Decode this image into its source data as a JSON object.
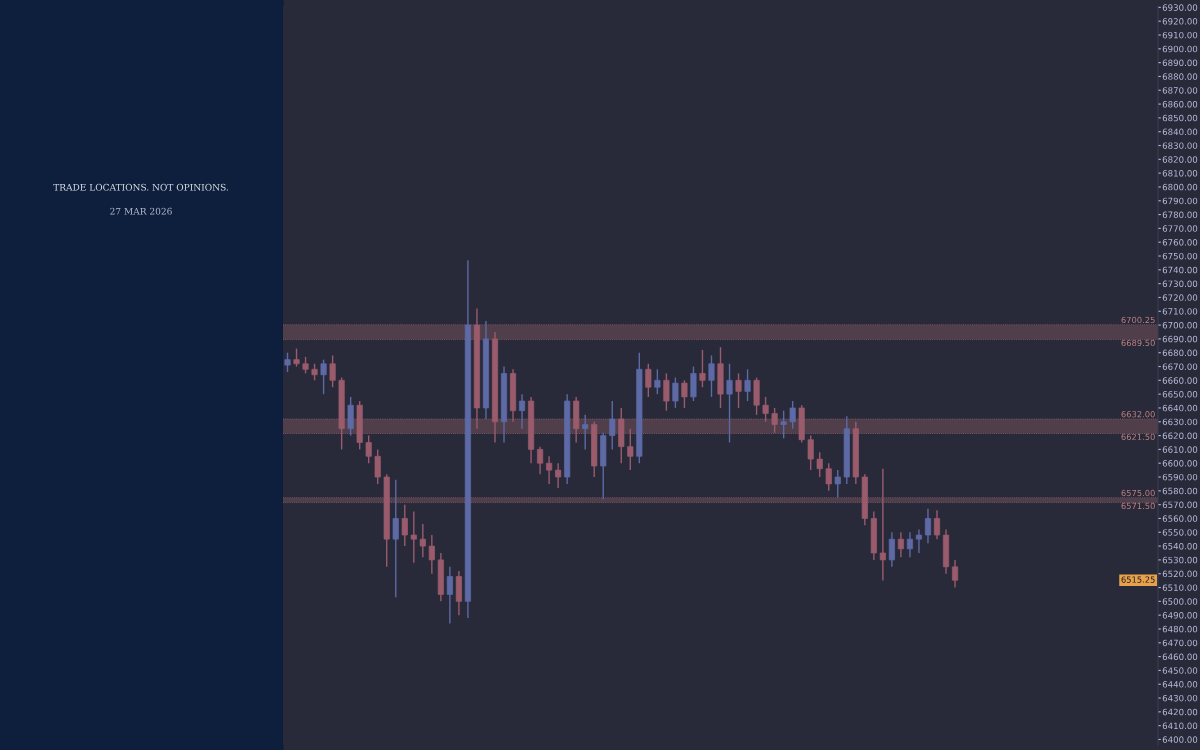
{
  "chart_data": {
    "type": "candlestick",
    "subtitle": "TRADE LOCATIONS. NOT OPINIONS.",
    "annotations": [
      "27 MAR 2026",
      {
        "text": "6515.25",
        "y": 6515.25
      }
    ],
    "categories": [
      null,
      null,
      null,
      null,
      null,
      null,
      null,
      null,
      null,
      null,
      null,
      null,
      null,
      null,
      null,
      null,
      null,
      null,
      null,
      null,
      null,
      null,
      null,
      null,
      null,
      null,
      null,
      null,
      null,
      null,
      null,
      null,
      null,
      null,
      null,
      null,
      null,
      null,
      null,
      null,
      null,
      null,
      null,
      null,
      null,
      null,
      null,
      null,
      null,
      null,
      null,
      null,
      null,
      null,
      null,
      null,
      null,
      null,
      null,
      null,
      null,
      null,
      null,
      null,
      null,
      null,
      null,
      null,
      null,
      null,
      null,
      null,
      null,
      null,
      null,
      null,
      null,
      null,
      null,
      null,
      null,
      null,
      null,
      null,
      null,
      null,
      null,
      null,
      null,
      null,
      null,
      null,
      null,
      null,
      null,
      null,
      null
    ],
    "ohlc": [
      [
        6671,
        6680,
        6666,
        6675
      ],
      [
        6675,
        6683,
        6670,
        6672
      ],
      [
        6672,
        6677,
        6665,
        6668
      ],
      [
        6668,
        6672,
        6660,
        6664
      ],
      [
        6664,
        6675,
        6650,
        6672
      ],
      [
        6672,
        6678,
        6655,
        6660
      ],
      [
        6660,
        6662,
        6610,
        6625
      ],
      [
        6625,
        6648,
        6620,
        6642
      ],
      [
        6642,
        6645,
        6610,
        6615
      ],
      [
        6615,
        6620,
        6600,
        6605
      ],
      [
        6605,
        6610,
        6585,
        6590
      ],
      [
        6590,
        6592,
        6525,
        6545
      ],
      [
        6545,
        6588,
        6503,
        6560
      ],
      [
        6560,
        6570,
        6540,
        6548
      ],
      [
        6548,
        6565,
        6528,
        6545
      ],
      [
        6545,
        6556,
        6532,
        6540
      ],
      [
        6540,
        6548,
        6520,
        6530
      ],
      [
        6530,
        6535,
        6500,
        6505
      ],
      [
        6505,
        6525,
        6484,
        6518
      ],
      [
        6518,
        6522,
        6490,
        6500
      ],
      [
        6500,
        6747,
        6488,
        6700
      ],
      [
        6700,
        6712,
        6625,
        6640
      ],
      [
        6640,
        6703,
        6632,
        6690
      ],
      [
        6690,
        6695,
        6615,
        6630
      ],
      [
        6630,
        6670,
        6615,
        6665
      ],
      [
        6665,
        6668,
        6630,
        6638
      ],
      [
        6638,
        6650,
        6625,
        6645
      ],
      [
        6645,
        6648,
        6600,
        6610
      ],
      [
        6610,
        6612,
        6592,
        6600
      ],
      [
        6600,
        6605,
        6585,
        6595
      ],
      [
        6595,
        6600,
        6582,
        6590
      ],
      [
        6590,
        6650,
        6585,
        6645
      ],
      [
        6645,
        6648,
        6615,
        6625
      ],
      [
        6625,
        6635,
        6610,
        6628
      ],
      [
        6628,
        6630,
        6590,
        6598
      ],
      [
        6598,
        6622,
        6574,
        6620
      ],
      [
        6620,
        6645,
        6610,
        6632
      ],
      [
        6632,
        6640,
        6600,
        6612
      ],
      [
        6612,
        6625,
        6595,
        6605
      ],
      [
        6605,
        6680,
        6600,
        6668
      ],
      [
        6668,
        6672,
        6648,
        6655
      ],
      [
        6655,
        6668,
        6650,
        6660
      ],
      [
        6660,
        6665,
        6638,
        6645
      ],
      [
        6645,
        6662,
        6640,
        6658
      ],
      [
        6658,
        6660,
        6640,
        6648
      ],
      [
        6648,
        6670,
        6645,
        6665
      ],
      [
        6665,
        6682,
        6655,
        6660
      ],
      [
        6660,
        6678,
        6648,
        6672
      ],
      [
        6672,
        6684,
        6640,
        6650
      ],
      [
        6650,
        6672,
        6615,
        6660
      ],
      [
        6660,
        6665,
        6640,
        6652
      ],
      [
        6652,
        6668,
        6645,
        6660
      ],
      [
        6660,
        6662,
        6635,
        6642
      ],
      [
        6642,
        6648,
        6630,
        6636
      ],
      [
        6636,
        6640,
        6622,
        6628
      ],
      [
        6628,
        6638,
        6618,
        6630
      ],
      [
        6630,
        6645,
        6625,
        6640
      ],
      [
        6640,
        6642,
        6615,
        6617
      ],
      [
        6617,
        6620,
        6595,
        6603
      ],
      [
        6603,
        6608,
        6590,
        6596
      ],
      [
        6596,
        6600,
        6580,
        6585
      ],
      [
        6585,
        6595,
        6575,
        6590
      ],
      [
        6590,
        6634,
        6585,
        6625
      ],
      [
        6625,
        6630,
        6585,
        6590
      ],
      [
        6590,
        6592,
        6555,
        6560
      ],
      [
        6560,
        6565,
        6530,
        6535
      ],
      [
        6535,
        6596,
        6515,
        6530
      ],
      [
        6530,
        6550,
        6525,
        6545
      ],
      [
        6545,
        6550,
        6532,
        6538
      ],
      [
        6538,
        6550,
        6532,
        6545
      ],
      [
        6545,
        6552,
        6535,
        6548
      ],
      [
        6548,
        6567,
        6542,
        6560
      ],
      [
        6560,
        6566,
        6545,
        6548
      ],
      [
        6548,
        6552,
        6520,
        6525
      ],
      [
        6525,
        6530,
        6510,
        6515.25
      ],
      null,
      null,
      null,
      null,
      null,
      null,
      null,
      null,
      null,
      null,
      null,
      null,
      null,
      null,
      null,
      null,
      null,
      null,
      null,
      null,
      null,
      null
    ],
    "colors": [
      "#5d6aa6",
      "#9a5c6c",
      "#9a5c6c",
      "#9a5c6c",
      "#5d6aa6",
      "#9a5c6c",
      "#9a5c6c",
      "#5d6aa6",
      "#9a5c6c",
      "#9a5c6c",
      "#9a5c6c",
      "#9a5c6c",
      "#5d6aa6",
      "#9a5c6c",
      "#9a5c6c",
      "#9a5c6c",
      "#9a5c6c",
      "#9a5c6c",
      "#5d6aa6",
      "#9a5c6c",
      "#5d6aa6",
      "#9a5c6c",
      "#5d6aa6",
      "#9a5c6c",
      "#5d6aa6",
      "#9a5c6c",
      "#5d6aa6",
      "#9a5c6c",
      "#9a5c6c",
      "#9a5c6c",
      "#9a5c6c",
      "#5d6aa6",
      "#9a5c6c",
      "#5d6aa6",
      "#9a5c6c",
      "#5d6aa6",
      "#5d6aa6",
      "#9a5c6c",
      "#9a5c6c",
      "#5d6aa6",
      "#9a5c6c",
      "#5d6aa6",
      "#9a5c6c",
      "#5d6aa6",
      "#9a5c6c",
      "#5d6aa6",
      "#9a5c6c",
      "#5d6aa6",
      "#9a5c6c",
      "#5d6aa6",
      "#9a5c6c",
      "#5d6aa6",
      "#9a5c6c",
      "#9a5c6c",
      "#9a5c6c",
      "#5d6aa6",
      "#5d6aa6",
      "#9a5c6c",
      "#9a5c6c",
      "#9a5c6c",
      "#9a5c6c",
      "#5d6aa6",
      "#5d6aa6",
      "#9a5c6c",
      "#9a5c6c",
      "#9a5c6c",
      "#9a5c6c",
      "#5d6aa6",
      "#9a5c6c",
      "#5d6aa6",
      "#5d6aa6",
      "#5d6aa6",
      "#9a5c6c",
      "#9a5c6c",
      "#9a5c6c",
      null,
      null,
      null,
      null,
      null,
      null,
      null,
      null,
      null,
      null,
      null,
      null,
      null,
      null,
      null,
      null,
      null,
      null,
      null,
      null,
      null,
      null
    ],
    "ylim": [
      6396,
      6931
    ],
    "yticks": [
      {
        "value": 6400,
        "label": "6400.00"
      },
      {
        "value": 6410,
        "label": "6410.00"
      },
      {
        "value": 6420,
        "label": "6420.00"
      },
      {
        "value": 6430,
        "label": "6430.00"
      },
      {
        "value": 6440,
        "label": "6440.00"
      },
      {
        "value": 6450,
        "label": "6450.00"
      },
      {
        "value": 6460,
        "label": "6460.00"
      },
      {
        "value": 6470,
        "label": "6470.00"
      },
      {
        "value": 6480,
        "label": "6480.00"
      },
      {
        "value": 6490,
        "label": "6490.00"
      },
      {
        "value": 6500,
        "label": "6500.00"
      },
      {
        "value": 6510,
        "label": "6510.00"
      },
      {
        "value": 6520,
        "label": "6520.00"
      },
      {
        "value": 6530,
        "label": "6530.00"
      },
      {
        "value": 6540,
        "label": "6540.00"
      },
      {
        "value": 6550,
        "label": "6550.00"
      },
      {
        "value": 6560,
        "label": "6560.00"
      },
      {
        "value": 6570,
        "label": "6570.00"
      },
      {
        "value": 6580,
        "label": "6580.00"
      },
      {
        "value": 6590,
        "label": "6590.00"
      },
      {
        "value": 6600,
        "label": "6600.00"
      },
      {
        "value": 6610,
        "label": "6610.00"
      },
      {
        "value": 6620,
        "label": "6620.00"
      },
      {
        "value": 6630,
        "label": "6630.00"
      },
      {
        "value": 6640,
        "label": "6640.00"
      },
      {
        "value": 6650,
        "label": "6650.00"
      },
      {
        "value": 6660,
        "label": "6660.00"
      },
      {
        "value": 6670,
        "label": "6670.00"
      },
      {
        "value": 6680,
        "label": "6680.00"
      },
      {
        "value": 6690,
        "label": "6690.00"
      },
      {
        "value": 6700,
        "label": "6700.00"
      },
      {
        "value": 6710,
        "label": "6710.00"
      },
      {
        "value": 6720,
        "label": "6720.00"
      },
      {
        "value": 6730,
        "label": "6730.00"
      },
      {
        "value": 6740,
        "label": "6740.00"
      },
      {
        "value": 6750,
        "label": "6750.00"
      },
      {
        "value": 6760,
        "label": "6760.00"
      },
      {
        "value": 6770,
        "label": "6770.00"
      },
      {
        "value": 6780,
        "label": "6780.00"
      },
      {
        "value": 6790,
        "label": "6790.00"
      },
      {
        "value": 6800,
        "label": "6800.00"
      },
      {
        "value": 6810,
        "label": "6810.00"
      },
      {
        "value": 6820,
        "label": "6820.00"
      },
      {
        "value": 6830,
        "label": "6830.00"
      },
      {
        "value": 6840,
        "label": "6840.00"
      },
      {
        "value": 6850,
        "label": "6850.00"
      },
      {
        "value": 6860,
        "label": "6860.00"
      },
      {
        "value": 6870,
        "label": "6870.00"
      },
      {
        "value": 6880,
        "label": "6880.00"
      },
      {
        "value": 6890,
        "label": "6890.00"
      },
      {
        "value": 6900,
        "label": "6900.00"
      },
      {
        "value": 6910,
        "label": "6910.00"
      },
      {
        "value": 6920,
        "label": "6920.00"
      },
      {
        "value": 6930,
        "label": "6930.00"
      }
    ],
    "bands": [
      {
        "axis": "y",
        "from": 6689.5,
        "to": 6700.25,
        "color": "#503e4b"
      },
      {
        "axis": "y",
        "from": 6621.5,
        "to": 6632,
        "color": "#503e4b"
      },
      {
        "axis": "y",
        "from": 6571.5,
        "to": 6575,
        "color": "#503e4b"
      }
    ],
    "ref_lines": [
      {
        "axis": "y",
        "value": 6700.25,
        "label": "6700.25",
        "color": "#8a6472",
        "line_style": "dotted"
      },
      {
        "axis": "y",
        "value": 6689.5,
        "label": "6689.50",
        "color": "#8a6472",
        "line_style": "dotted"
      },
      {
        "axis": "y",
        "value": 6632,
        "label": "6632.00",
        "color": "#8a6472",
        "line_style": "dotted"
      },
      {
        "axis": "y",
        "value": 6621.5,
        "label": "6621.50",
        "color": "#8a6472",
        "line_style": "dotted"
      },
      {
        "axis": "y",
        "value": 6575,
        "label": "6575.00",
        "color": "#8a6472",
        "line_style": "dotted"
      },
      {
        "axis": "y",
        "value": 6571.5,
        "label": "6571.50",
        "color": "#8a6472",
        "line_style": "dotted"
      }
    ],
    "tick_labels": "y",
    "grid": false
  }
}
